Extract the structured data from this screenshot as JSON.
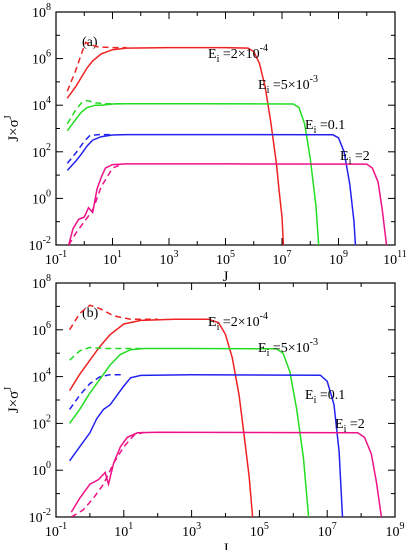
{
  "chart_data": [
    {
      "type": "line",
      "panel_label": "(a)",
      "xlabel": "J",
      "ylabel_base": "J",
      "ylabel_times": "×",
      "ylabel_sigma": "σ",
      "ylabel_sup": "J",
      "x_scale": "log",
      "y_scale": "log",
      "xlim_exp": [
        -1,
        11
      ],
      "ylim_exp": [
        -2,
        8
      ],
      "x_ticks": [
        -1,
        1,
        3,
        5,
        7,
        9,
        11
      ],
      "y_ticks": [
        -2,
        0,
        2,
        4,
        6,
        8
      ],
      "grid": false,
      "series": [
        {
          "name": "Ei=2×10-4",
          "label_main": "E",
          "label_sub": "i",
          "label_eq": " =2×10",
          "label_sup": "-4",
          "color": "#ee2222",
          "solid_logpoints": [
            [
              -0.6,
              4.3
            ],
            [
              -0.3,
              4.8
            ],
            [
              -0.1,
              5.2
            ],
            [
              0.1,
              5.6
            ],
            [
              0.3,
              5.9
            ],
            [
              0.6,
              6.2
            ],
            [
              1.0,
              6.38
            ],
            [
              1.5,
              6.45
            ],
            [
              3,
              6.47
            ],
            [
              5,
              6.47
            ],
            [
              5.8,
              6.45
            ],
            [
              6.0,
              6.3
            ],
            [
              6.2,
              5.8
            ],
            [
              6.4,
              4.8
            ],
            [
              6.6,
              3.3
            ],
            [
              6.8,
              1.5
            ],
            [
              6.9,
              0.3
            ],
            [
              7.0,
              -0.8
            ],
            [
              7.05,
              -2.0
            ]
          ],
          "dashed_logpoints": [
            [
              -0.6,
              4.6
            ],
            [
              -0.3,
              5.5
            ],
            [
              -0.1,
              6.2
            ],
            [
              0.05,
              6.7
            ],
            [
              0.2,
              6.6
            ],
            [
              0.5,
              6.5
            ],
            [
              1.0,
              6.47
            ],
            [
              1.5,
              6.47
            ]
          ]
        },
        {
          "name": "Ei=5×10-3",
          "label_main": "E",
          "label_sub": "i",
          "label_eq": " =5×10",
          "label_sup": "-3",
          "color": "#22dd22",
          "solid_logpoints": [
            [
              -0.6,
              2.9
            ],
            [
              -0.3,
              3.4
            ],
            [
              -0.1,
              3.7
            ],
            [
              0.1,
              3.9
            ],
            [
              0.4,
              4.0
            ],
            [
              0.6,
              4.0
            ],
            [
              1.0,
              4.05
            ],
            [
              1.5,
              4.06
            ],
            [
              4,
              4.06
            ],
            [
              7.4,
              4.05
            ],
            [
              7.6,
              3.9
            ],
            [
              7.8,
              3.2
            ],
            [
              8.0,
              1.7
            ],
            [
              8.2,
              -0.3
            ],
            [
              8.3,
              -2.0
            ]
          ],
          "dashed_logpoints": [
            [
              -0.6,
              3.2
            ],
            [
              -0.3,
              3.8
            ],
            [
              -0.1,
              4.1
            ],
            [
              0.1,
              4.2
            ],
            [
              0.4,
              4.1
            ],
            [
              0.8,
              4.06
            ],
            [
              1.5,
              4.06
            ]
          ]
        },
        {
          "name": "Ei=0.1",
          "label_main": "E",
          "label_sub": "i",
          "label_eq": " =0.1",
          "label_sup": "",
          "color": "#2222ee",
          "solid_logpoints": [
            [
              -0.6,
              1.2
            ],
            [
              -0.3,
              1.6
            ],
            [
              -0.1,
              1.9
            ],
            [
              0.1,
              2.25
            ],
            [
              0.3,
              2.5
            ],
            [
              0.6,
              2.65
            ],
            [
              1.0,
              2.72
            ],
            [
              1.5,
              2.74
            ],
            [
              5,
              2.74
            ],
            [
              8.8,
              2.73
            ],
            [
              9.0,
              2.6
            ],
            [
              9.2,
              2.0
            ],
            [
              9.4,
              0.6
            ],
            [
              9.55,
              -1.0
            ],
            [
              9.6,
              -2.0
            ]
          ],
          "dashed_logpoints": [
            [
              -0.6,
              1.5
            ],
            [
              -0.3,
              1.95
            ],
            [
              0,
              2.45
            ],
            [
              0.2,
              2.7
            ],
            [
              0.5,
              2.74
            ],
            [
              1.0,
              2.74
            ]
          ]
        },
        {
          "name": "Ei=2",
          "label_main": "E",
          "label_sub": "i",
          "label_eq": " =2",
          "label_sup": "",
          "color": "#ee1188",
          "solid_logpoints": [
            [
              -0.55,
              -2.0
            ],
            [
              -0.4,
              -1.3
            ],
            [
              -0.2,
              -0.9
            ],
            [
              0,
              -0.8
            ],
            [
              0.15,
              -0.4
            ],
            [
              0.3,
              -0.6
            ],
            [
              0.45,
              0.4
            ],
            [
              0.6,
              0.9
            ],
            [
              0.75,
              1.3
            ],
            [
              1.0,
              1.45
            ],
            [
              1.5,
              1.48
            ],
            [
              5,
              1.48
            ],
            [
              10.0,
              1.47
            ],
            [
              10.2,
              1.3
            ],
            [
              10.4,
              0.7
            ],
            [
              10.55,
              -0.5
            ],
            [
              10.7,
              -2.0
            ]
          ],
          "dashed_logpoints": [
            [
              -0.55,
              -2.0
            ],
            [
              -0.3,
              -1.5
            ],
            [
              0,
              -1.0
            ],
            [
              0.3,
              -0.5
            ],
            [
              0.6,
              0.5
            ],
            [
              1.0,
              1.3
            ],
            [
              1.3,
              1.45
            ]
          ]
        }
      ]
    },
    {
      "type": "line",
      "panel_label": "(b)",
      "xlabel": "J",
      "ylabel_base": "J",
      "ylabel_times": "×",
      "ylabel_sigma": "σ",
      "ylabel_sup": "J",
      "x_scale": "log",
      "y_scale": "log",
      "xlim_exp": [
        -1,
        9
      ],
      "ylim_exp": [
        -2,
        8
      ],
      "x_ticks": [
        -1,
        1,
        3,
        5,
        7,
        9
      ],
      "y_ticks": [
        -2,
        0,
        2,
        4,
        6,
        8
      ],
      "grid": false,
      "series": [
        {
          "name": "Ei=2×10-4",
          "label_main": "E",
          "label_sub": "i",
          "label_eq": " =2×10",
          "label_sup": "-4",
          "color": "#ee2222",
          "solid_logpoints": [
            [
              -0.6,
              3.4
            ],
            [
              -0.3,
              4.1
            ],
            [
              0,
              4.7
            ],
            [
              0.3,
              5.3
            ],
            [
              0.6,
              5.8
            ],
            [
              1.0,
              6.25
            ],
            [
              1.5,
              6.4
            ],
            [
              2.5,
              6.45
            ],
            [
              3.5,
              6.45
            ],
            [
              3.8,
              6.3
            ],
            [
              4.0,
              5.8
            ],
            [
              4.2,
              4.8
            ],
            [
              4.4,
              3.2
            ],
            [
              4.55,
              1.5
            ],
            [
              4.7,
              -0.3
            ],
            [
              4.8,
              -2.0
            ]
          ],
          "dashed_logpoints": [
            [
              -0.6,
              6.0
            ],
            [
              -0.3,
              6.7
            ],
            [
              0,
              7.05
            ],
            [
              0.3,
              6.9
            ],
            [
              0.7,
              6.6
            ],
            [
              1.2,
              6.45
            ],
            [
              2,
              6.45
            ]
          ]
        },
        {
          "name": "Ei=5×10-3",
          "label_main": "E",
          "label_sub": "i",
          "label_eq": " =5×10",
          "label_sup": "-3",
          "color": "#22dd22",
          "solid_logpoints": [
            [
              -0.6,
              2.0
            ],
            [
              -0.3,
              2.6
            ],
            [
              0,
              3.3
            ],
            [
              0.3,
              3.9
            ],
            [
              0.6,
              4.5
            ],
            [
              0.9,
              4.95
            ],
            [
              1.2,
              5.15
            ],
            [
              1.6,
              5.2
            ],
            [
              3,
              5.2
            ],
            [
              5.5,
              5.19
            ],
            [
              5.7,
              5.0
            ],
            [
              5.9,
              4.2
            ],
            [
              6.1,
              2.6
            ],
            [
              6.3,
              0.5
            ],
            [
              6.45,
              -2.0
            ]
          ],
          "dashed_logpoints": [
            [
              -0.6,
              4.7
            ],
            [
              -0.3,
              5.1
            ],
            [
              0,
              5.25
            ],
            [
              0.4,
              5.2
            ],
            [
              0.8,
              5.2
            ],
            [
              1.5,
              5.2
            ]
          ]
        },
        {
          "name": "Ei=0.1",
          "label_main": "E",
          "label_sub": "i",
          "label_eq": " =0.1",
          "label_sup": "",
          "color": "#2222ee",
          "solid_logpoints": [
            [
              -0.6,
              0.4
            ],
            [
              -0.3,
              1.0
            ],
            [
              0,
              1.6
            ],
            [
              0.2,
              2.2
            ],
            [
              0.4,
              2.6
            ],
            [
              0.6,
              2.8
            ],
            [
              0.8,
              3.2
            ],
            [
              1.0,
              3.6
            ],
            [
              1.2,
              3.95
            ],
            [
              1.5,
              4.05
            ],
            [
              3,
              4.08
            ],
            [
              6.8,
              4.06
            ],
            [
              7.0,
              3.8
            ],
            [
              7.2,
              2.8
            ],
            [
              7.35,
              0.8
            ],
            [
              7.45,
              -2.0
            ]
          ],
          "dashed_logpoints": [
            [
              -0.6,
              2.6
            ],
            [
              -0.3,
              3.2
            ],
            [
              0,
              3.7
            ],
            [
              0.3,
              4.0
            ],
            [
              0.6,
              4.08
            ],
            [
              1.0,
              4.08
            ]
          ]
        },
        {
          "name": "Ei=2",
          "label_main": "E",
          "label_sub": "i",
          "label_eq": " =2",
          "label_sup": "",
          "color": "#ee1188",
          "solid_logpoints": [
            [
              -0.55,
              -1.8
            ],
            [
              -0.3,
              -1.2
            ],
            [
              0,
              -0.6
            ],
            [
              0.25,
              -0.4
            ],
            [
              0.45,
              -0.1
            ],
            [
              0.55,
              -0.6
            ],
            [
              0.7,
              0.3
            ],
            [
              0.9,
              1.0
            ],
            [
              1.1,
              1.4
            ],
            [
              1.4,
              1.6
            ],
            [
              2,
              1.62
            ],
            [
              7.9,
              1.6
            ],
            [
              8.1,
              1.4
            ],
            [
              8.3,
              0.7
            ],
            [
              8.45,
              -0.5
            ],
            [
              8.6,
              -2.0
            ]
          ],
          "dashed_logpoints": [
            [
              -0.55,
              -2.0
            ],
            [
              -0.2,
              -1.7
            ],
            [
              0.1,
              -1.2
            ],
            [
              0.4,
              -0.6
            ],
            [
              0.7,
              0.3
            ],
            [
              1.0,
              1.0
            ],
            [
              1.3,
              1.5
            ],
            [
              1.6,
              1.62
            ]
          ]
        }
      ]
    }
  ]
}
